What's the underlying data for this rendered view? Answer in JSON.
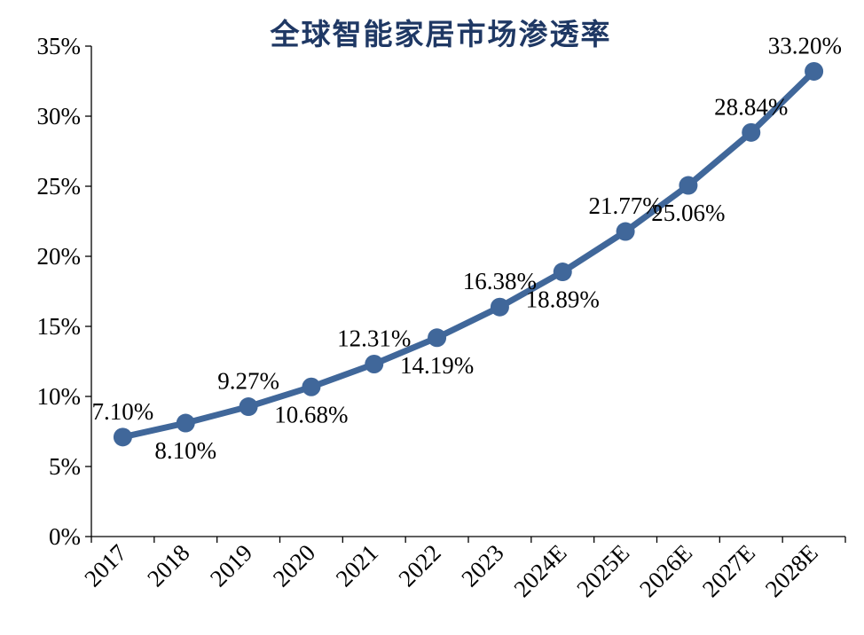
{
  "chart_data": {
    "type": "line",
    "title": "全球智能家居市场渗透率",
    "xlabel": "",
    "ylabel": "",
    "categories": [
      "2017",
      "2018",
      "2019",
      "2020",
      "2021",
      "2022",
      "2023",
      "2024E",
      "2025E",
      "2026E",
      "2027E",
      "2028E"
    ],
    "series": [
      {
        "values": [
          7.1,
          8.1,
          9.27,
          10.68,
          12.31,
          14.19,
          16.38,
          18.89,
          21.77,
          25.06,
          28.84,
          33.2
        ]
      }
    ],
    "data_labels": [
      "7.10%",
      "8.10%",
      "9.27%",
      "10.68%",
      "12.31%",
      "14.19%",
      "16.38%",
      "18.89%",
      "21.77%",
      "25.06%",
      "28.84%",
      "33.20%"
    ],
    "label_positions": [
      "above",
      "below",
      "above",
      "below",
      "above",
      "below",
      "above",
      "below",
      "above",
      "below",
      "above",
      "above"
    ],
    "ylim": [
      0,
      35
    ],
    "yticks": [
      0,
      5,
      10,
      15,
      20,
      25,
      30,
      35
    ],
    "ytick_labels": [
      "0%",
      "5%",
      "10%",
      "15%",
      "20%",
      "25%",
      "30%",
      "35%"
    ],
    "grid": false,
    "legend": "none",
    "colors": {
      "line": "#40679a",
      "marker": "#40679a",
      "title": "#1f3864",
      "axis": "#000000"
    }
  }
}
